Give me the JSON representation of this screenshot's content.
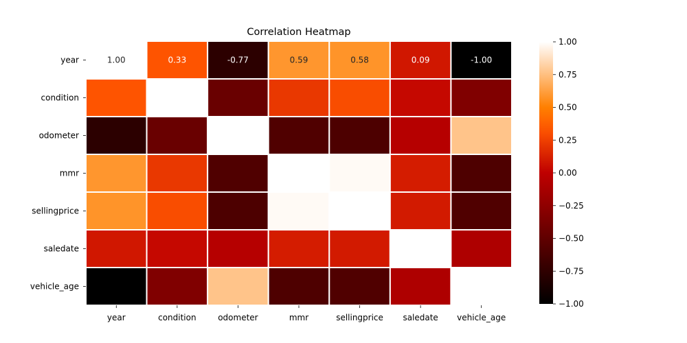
{
  "chart_data": {
    "type": "heatmap",
    "title": "Correlation Heatmap",
    "xlabel": "",
    "ylabel": "",
    "x_categories": [
      "year",
      "condition",
      "odometer",
      "mmr",
      "sellingprice",
      "saledate",
      "vehicle_age"
    ],
    "y_categories": [
      "year",
      "condition",
      "odometer",
      "mmr",
      "sellingprice",
      "saledate",
      "vehicle_age"
    ],
    "values": [
      [
        1.0,
        0.33,
        -0.77,
        0.59,
        0.58,
        0.09,
        -1.0
      ],
      [
        0.33,
        1.0,
        -0.45,
        0.22,
        0.3,
        0.03,
        -0.33
      ],
      [
        -0.77,
        -0.45,
        1.0,
        -0.58,
        -0.6,
        -0.05,
        0.77
      ],
      [
        0.59,
        0.22,
        -0.58,
        1.0,
        0.98,
        0.11,
        -0.59
      ],
      [
        0.58,
        0.3,
        -0.6,
        0.98,
        1.0,
        0.1,
        -0.58
      ],
      [
        0.09,
        0.03,
        -0.05,
        0.11,
        0.1,
        1.0,
        -0.09
      ],
      [
        -1.0,
        -0.33,
        0.77,
        -0.59,
        -0.58,
        -0.09,
        1.0
      ]
    ],
    "annotated_row": 0,
    "annotations": [
      "1.00",
      "0.33",
      "-0.77",
      "0.59",
      "0.58",
      "0.09",
      "-1.00"
    ],
    "colormap": "gist_heat",
    "vmin": -1.0,
    "vmax": 1.0,
    "colorbar_ticks": [
      1.0,
      0.75,
      0.5,
      0.25,
      0.0,
      -0.25,
      -0.5,
      -0.75,
      -1.0
    ],
    "colorbar_tick_labels": [
      "1.00",
      "0.75",
      "0.50",
      "0.25",
      "0.00",
      "−0.25",
      "−0.50",
      "−0.75",
      "−1.00"
    ],
    "cell_border_color": "#ffffff"
  }
}
